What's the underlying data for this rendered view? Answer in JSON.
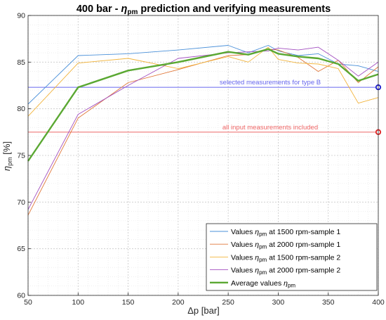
{
  "chart_data": {
    "type": "line",
    "title_prefix": "400  bar  -  ",
    "title_symbol": "η",
    "title_symbol_sub": "pm",
    "title_suffix": "  prediction and verifying measurements",
    "xlabel": "Δp  [bar]",
    "ylabel_symbol": "η",
    "ylabel_sub": "pm",
    "ylabel_unit": " [%]",
    "xlim": [
      50,
      400
    ],
    "ylim": [
      60,
      90
    ],
    "xticks": [
      50,
      100,
      150,
      200,
      250,
      300,
      350,
      400
    ],
    "yticks": [
      60,
      65,
      70,
      75,
      80,
      85,
      90
    ],
    "grid": "major and minor, dotted",
    "legend_position": "bottom-right",
    "series": [
      {
        "name": "Values  ηpm  at  1500  rpm-sample  1",
        "legend_parts": [
          "Values  ",
          "η",
          "pm",
          "  at  1500  rpm-sample  1"
        ],
        "color": "#4a90d9",
        "width": 0.9,
        "x": [
          50,
          100,
          150,
          200,
          250,
          270,
          290,
          300,
          320,
          340,
          360,
          380,
          400
        ],
        "y": [
          80.5,
          85.7,
          85.9,
          86.3,
          86.8,
          86.0,
          86.8,
          86.2,
          85.7,
          85.9,
          84.8,
          84.6,
          84.0
        ]
      },
      {
        "name": "Values  ηpm  at  2000  rpm-sample  1",
        "legend_parts": [
          "Values  ",
          "η",
          "pm",
          "  at  2000  rpm-sample  1"
        ],
        "color": "#e0783a",
        "width": 0.9,
        "x": [
          50,
          100,
          150,
          200,
          250,
          270,
          290,
          300,
          320,
          340,
          360,
          380,
          400
        ],
        "y": [
          68.6,
          79.0,
          82.8,
          84.2,
          85.7,
          85.8,
          86.4,
          86.3,
          85.5,
          84.0,
          85.2,
          82.8,
          84.5
        ]
      },
      {
        "name": "Values  ηpm  at  1500  rpm-sample  2",
        "legend_parts": [
          "Values  ",
          "η",
          "pm",
          "  at  1500  rpm-sample  2"
        ],
        "color": "#f2b43c",
        "width": 0.9,
        "x": [
          50,
          100,
          150,
          200,
          250,
          270,
          290,
          300,
          320,
          340,
          360,
          380,
          400
        ],
        "y": [
          79.2,
          84.9,
          85.4,
          84.3,
          85.6,
          85.0,
          86.6,
          85.3,
          84.9,
          84.8,
          84.3,
          80.6,
          81.2
        ]
      },
      {
        "name": "Values  ηpm  at  2000  rpm-sample  2",
        "legend_parts": [
          "Values  ",
          "η",
          "pm",
          "  at  2000  rpm-sample  2"
        ],
        "color": "#a24fc0",
        "width": 0.9,
        "x": [
          50,
          100,
          150,
          200,
          250,
          270,
          290,
          300,
          320,
          340,
          360,
          380,
          400
        ],
        "y": [
          69.2,
          79.4,
          82.5,
          85.4,
          86.0,
          86.1,
          86.2,
          86.5,
          86.3,
          86.6,
          85.2,
          83.5,
          85.0
        ]
      },
      {
        "name": "Average  values  ηpm",
        "legend_parts": [
          "Average  values  ",
          "η",
          "pm",
          ""
        ],
        "color": "#5aa832",
        "width": 2.4,
        "x": [
          50,
          100,
          150,
          200,
          250,
          270,
          290,
          300,
          320,
          340,
          360,
          380,
          400
        ],
        "y": [
          74.4,
          82.3,
          84.1,
          85.0,
          86.1,
          85.8,
          86.4,
          85.9,
          85.6,
          85.4,
          84.8,
          83.0,
          83.7
        ]
      }
    ],
    "reference_lines": [
      {
        "label": "selected measurements for type B",
        "y": 82.3,
        "color": "#6666ee",
        "marker_color": "#1a1acc"
      },
      {
        "label": "all input measurements included",
        "y": 77.5,
        "color": "#ee6666",
        "marker_color": "#dd2222"
      }
    ]
  }
}
